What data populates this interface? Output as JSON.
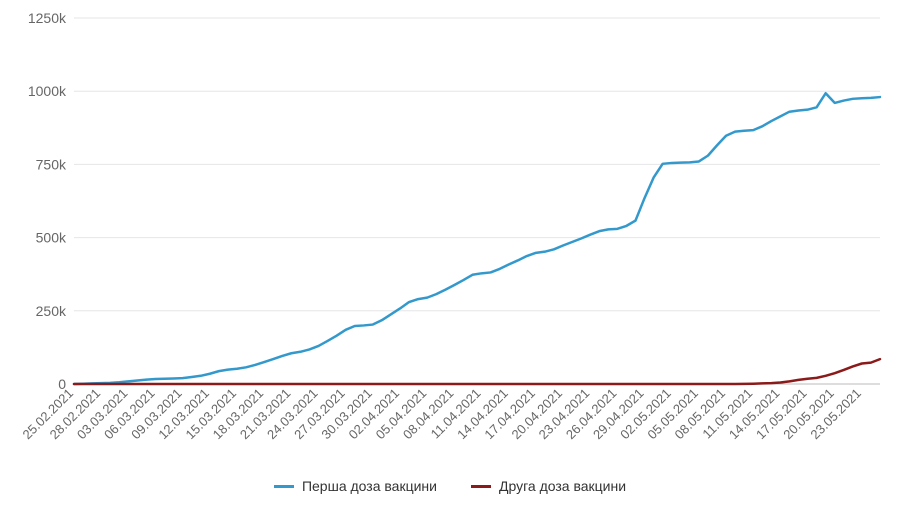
{
  "chart_data": {
    "type": "line",
    "title": "",
    "xlabel": "",
    "ylabel": "",
    "ylim": [
      0,
      1250000
    ],
    "yticks": [
      {
        "value": 0,
        "label": "0"
      },
      {
        "value": 250000,
        "label": "250k"
      },
      {
        "value": 500000,
        "label": "500k"
      },
      {
        "value": 750000,
        "label": "750k"
      },
      {
        "value": 1000000,
        "label": "1000k"
      },
      {
        "value": 1250000,
        "label": "1250k"
      }
    ],
    "x": [
      "25.02.2021",
      "26.02.2021",
      "27.02.2021",
      "28.02.2021",
      "01.03.2021",
      "02.03.2021",
      "03.03.2021",
      "04.03.2021",
      "05.03.2021",
      "06.03.2021",
      "07.03.2021",
      "08.03.2021",
      "09.03.2021",
      "10.03.2021",
      "11.03.2021",
      "12.03.2021",
      "13.03.2021",
      "14.03.2021",
      "15.03.2021",
      "16.03.2021",
      "17.03.2021",
      "18.03.2021",
      "19.03.2021",
      "20.03.2021",
      "21.03.2021",
      "22.03.2021",
      "23.03.2021",
      "24.03.2021",
      "25.03.2021",
      "26.03.2021",
      "27.03.2021",
      "28.03.2021",
      "29.03.2021",
      "30.03.2021",
      "31.03.2021",
      "01.04.2021",
      "02.04.2021",
      "03.04.2021",
      "04.04.2021",
      "05.04.2021",
      "06.04.2021",
      "07.04.2021",
      "08.04.2021",
      "09.04.2021",
      "10.04.2021",
      "11.04.2021",
      "12.04.2021",
      "13.04.2021",
      "14.04.2021",
      "15.04.2021",
      "16.04.2021",
      "17.04.2021",
      "18.04.2021",
      "19.04.2021",
      "20.04.2021",
      "21.04.2021",
      "22.04.2021",
      "23.04.2021",
      "24.04.2021",
      "25.04.2021",
      "26.04.2021",
      "27.04.2021",
      "28.04.2021",
      "29.04.2021",
      "30.04.2021",
      "01.05.2021",
      "02.05.2021",
      "03.05.2021",
      "04.05.2021",
      "05.05.2021",
      "06.05.2021",
      "07.05.2021",
      "08.05.2021",
      "09.05.2021",
      "10.05.2021",
      "11.05.2021",
      "12.05.2021",
      "13.05.2021",
      "14.05.2021",
      "15.05.2021",
      "16.05.2021",
      "17.05.2021",
      "18.05.2021",
      "19.05.2021",
      "20.05.2021",
      "21.05.2021",
      "22.05.2021",
      "23.05.2021",
      "24.05.2021",
      "25.05.2021"
    ],
    "xtick_labels": [
      "25.02.2021",
      "28.02.2021",
      "03.03.2021",
      "06.03.2021",
      "09.03.2021",
      "12.03.2021",
      "15.03.2021",
      "18.03.2021",
      "21.03.2021",
      "24.03.2021",
      "27.03.2021",
      "30.03.2021",
      "02.04.2021",
      "05.04.2021",
      "08.04.2021",
      "11.04.2021",
      "14.04.2021",
      "17.04.2021",
      "20.04.2021",
      "23.04.2021",
      "26.04.2021",
      "29.04.2021",
      "02.05.2021",
      "05.05.2021",
      "08.05.2021",
      "11.05.2021",
      "14.05.2021",
      "17.05.2021",
      "20.05.2021",
      "23.05.2021"
    ],
    "series": [
      {
        "name": "Перша доза вакцини",
        "color": "#3399cc",
        "values": [
          0,
          1000,
          2000,
          3000,
          4000,
          6000,
          9000,
          12000,
          15000,
          17000,
          18000,
          19000,
          20000,
          24000,
          28000,
          35000,
          44000,
          49000,
          52000,
          57000,
          65000,
          75000,
          85000,
          96000,
          105000,
          110000,
          118000,
          130000,
          147000,
          165000,
          185000,
          198000,
          200000,
          203000,
          218000,
          238000,
          258000,
          280000,
          290000,
          295000,
          307000,
          322000,
          338000,
          355000,
          373000,
          378000,
          381000,
          393000,
          408000,
          422000,
          437000,
          448000,
          452000,
          460000,
          473000,
          485000,
          497000,
          510000,
          522000,
          528000,
          530000,
          540000,
          558000,
          635000,
          705000,
          752000,
          755000,
          756000,
          757000,
          760000,
          780000,
          815000,
          848000,
          862000,
          865000,
          867000,
          880000,
          898000,
          914000,
          930000,
          934000,
          937000,
          945000,
          993000,
          960000,
          968000,
          974000,
          976000,
          977000,
          980000
        ]
      },
      {
        "name": "Друга доза вакцини",
        "color": "#8b1a1a",
        "values": [
          0,
          0,
          0,
          0,
          0,
          0,
          0,
          0,
          0,
          0,
          0,
          0,
          0,
          0,
          0,
          0,
          0,
          0,
          0,
          0,
          0,
          0,
          0,
          0,
          0,
          0,
          0,
          0,
          0,
          0,
          0,
          0,
          0,
          0,
          0,
          0,
          0,
          0,
          0,
          0,
          0,
          0,
          0,
          0,
          0,
          0,
          0,
          0,
          0,
          0,
          0,
          0,
          0,
          0,
          0,
          0,
          0,
          0,
          0,
          0,
          0,
          0,
          0,
          0,
          0,
          0,
          0,
          0,
          0,
          0,
          0,
          0,
          0,
          0,
          500,
          1000,
          2000,
          3000,
          5000,
          9000,
          14000,
          18000,
          21000,
          28000,
          37000,
          48000,
          60000,
          70000,
          73000,
          85000
        ]
      }
    ],
    "grid": true,
    "legend": "bottom-center"
  }
}
